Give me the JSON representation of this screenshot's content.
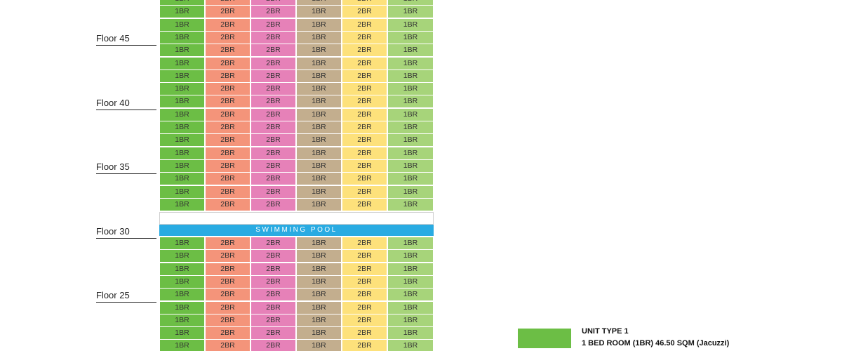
{
  "floor_labels": [
    "Floor 45",
    "Floor 40",
    "Floor 35",
    "Floor 30",
    "Floor 25"
  ],
  "unit_columns": [
    {
      "label": "1BR",
      "color": "#6cbe45"
    },
    {
      "label": "2BR",
      "color": "#f4947a"
    },
    {
      "label": "2BR",
      "color": "#e681b8"
    },
    {
      "label": "1BR",
      "color": "#c3ae8e"
    },
    {
      "label": "2BR",
      "color": "#fde17b"
    },
    {
      "label": "1BR",
      "color": "#a7d47a"
    }
  ],
  "rows_above_pool": 17,
  "rows_below_pool": 9,
  "amenity": {
    "label": "SWIMMING POOL",
    "color": "#29abe2"
  },
  "legend": {
    "title": "UNIT TYPE 1",
    "description": "1 BED ROOM (1BR) 46.50 SQM (Jacuzzi)",
    "color": "#6cbe45"
  }
}
